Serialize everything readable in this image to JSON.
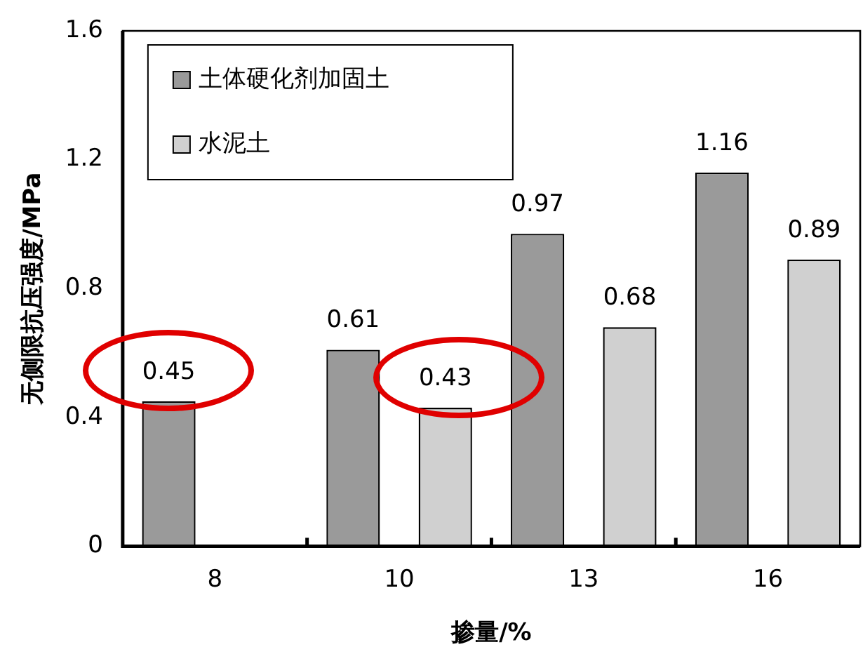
{
  "chart_data": {
    "type": "bar",
    "xlabel": "掺量/%",
    "ylabel": "无侧限抗压强度/MPa",
    "categories": [
      "8",
      "10",
      "13",
      "16"
    ],
    "series": [
      {
        "name": "土体硬化剂加固土",
        "color": "#9a9a9a",
        "values": [
          0.45,
          0.61,
          0.97,
          1.16
        ]
      },
      {
        "name": "水泥土",
        "color": "#d0d0d0",
        "values": [
          null,
          0.43,
          0.68,
          0.89
        ]
      }
    ],
    "ylim": [
      0,
      1.6
    ],
    "yticks": [
      0,
      0.4,
      0.8,
      1.2,
      1.6
    ],
    "grid": false,
    "legend": "top left",
    "data_labels": true
  }
}
